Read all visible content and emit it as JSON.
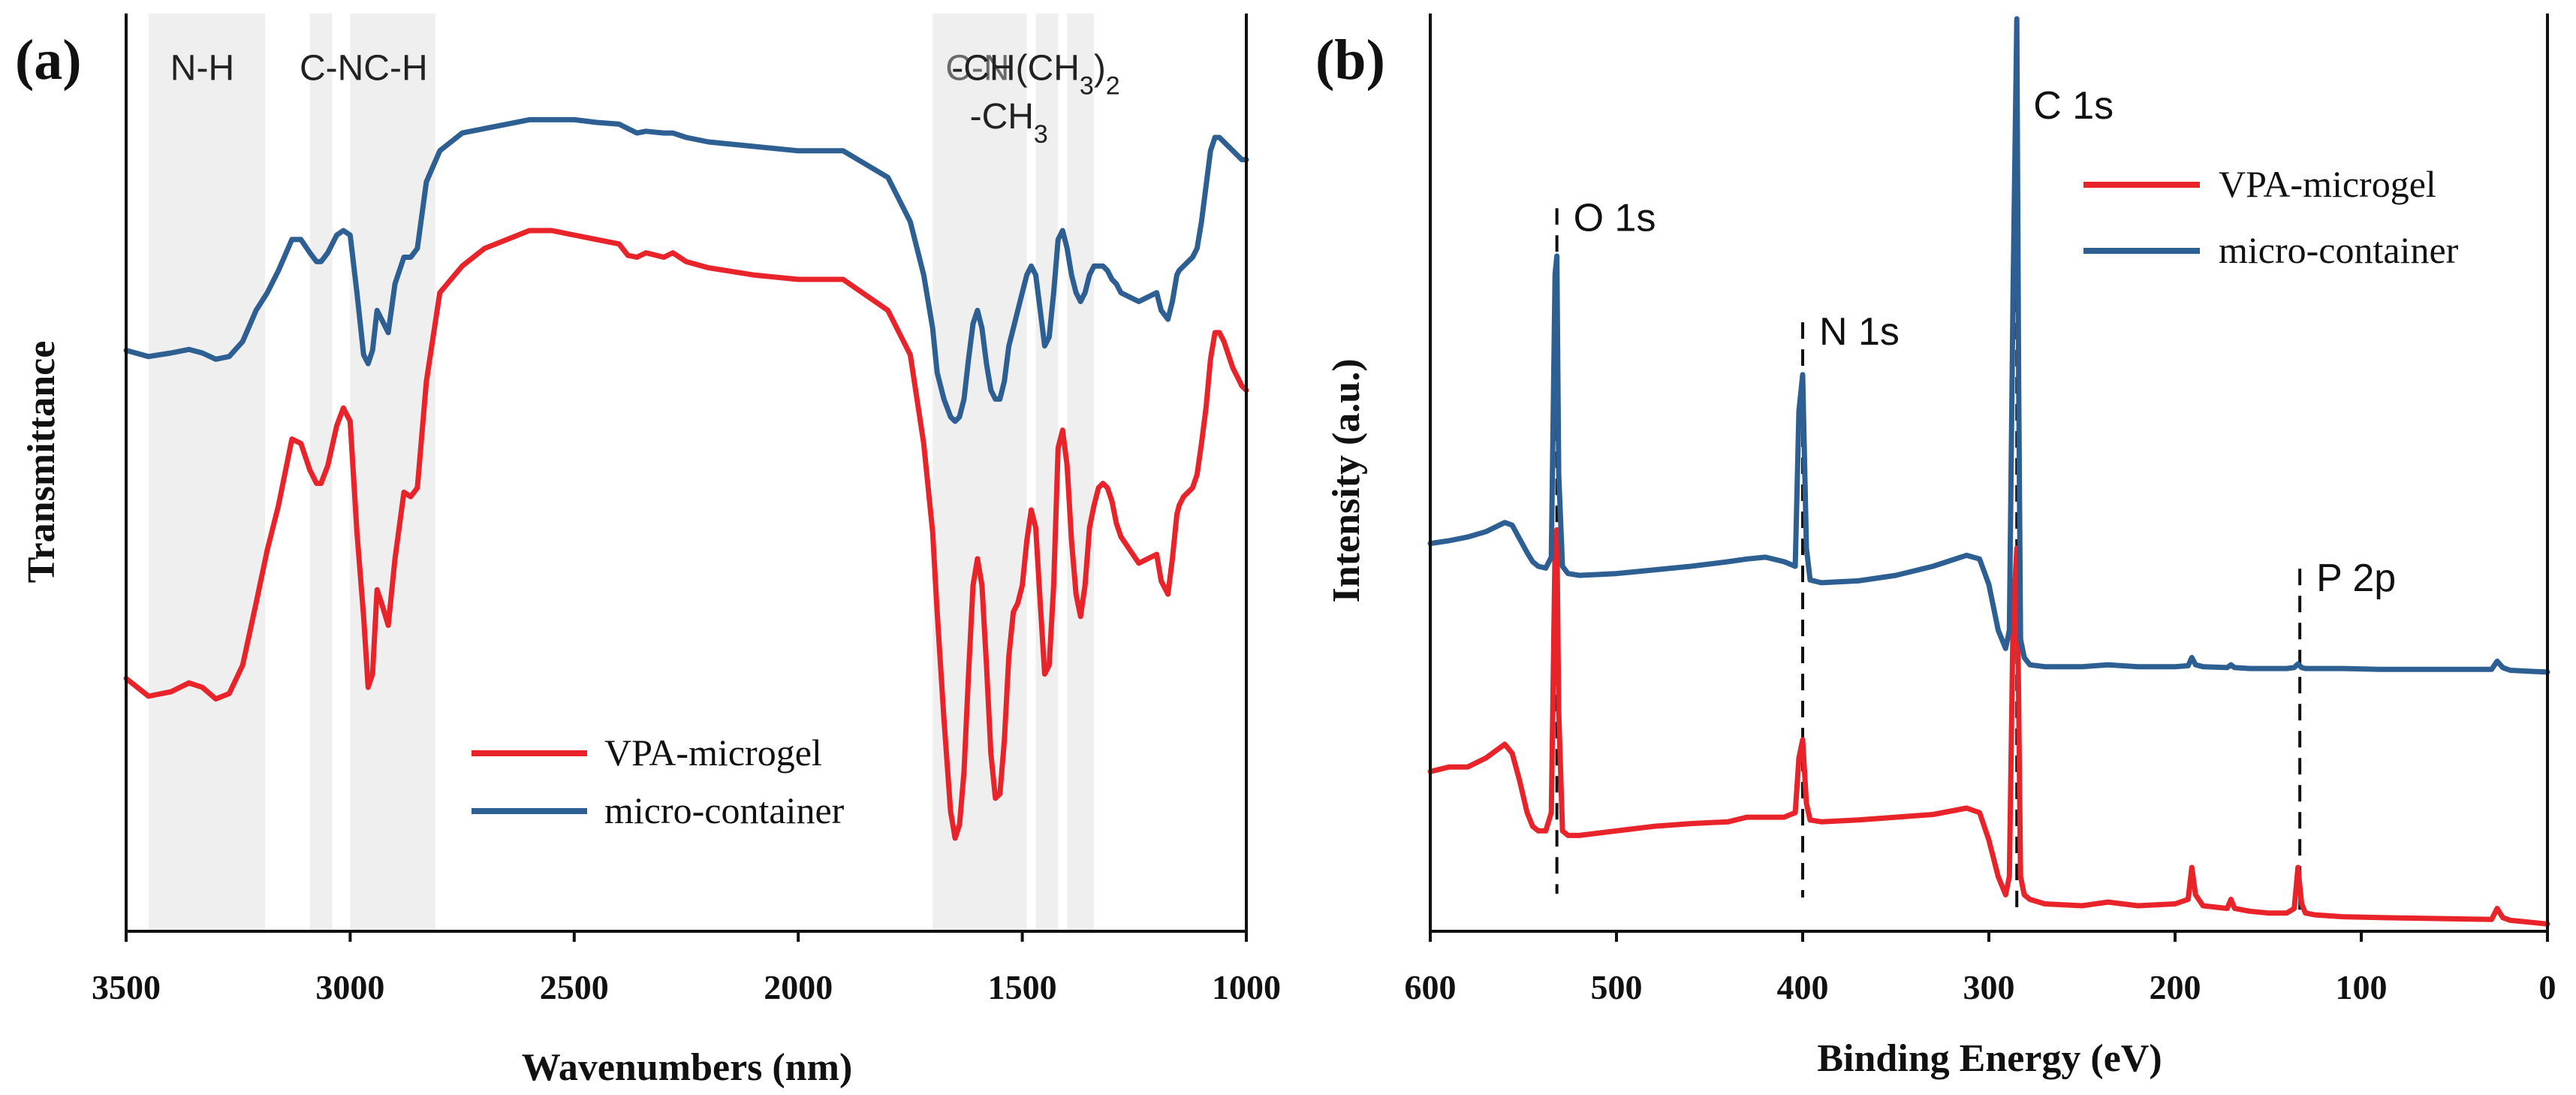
{
  "chart_data": [
    {
      "panel_label": "(a)",
      "type": "line",
      "xlabel": "Wavenumbers (nm)",
      "ylabel": "Transmittance",
      "xlim": [
        3500,
        1000
      ],
      "ylim": [
        0,
        1.05
      ],
      "xticks": [
        3500,
        3000,
        2500,
        2000,
        1500,
        1000
      ],
      "legend": {
        "position": "bottom-center"
      },
      "bands": [
        {
          "from": 3450,
          "to": 3190
        },
        {
          "from": 3090,
          "to": 3040
        },
        {
          "from": 3000,
          "to": 2810
        },
        {
          "from": 1700,
          "to": 1490
        },
        {
          "from": 1470,
          "to": 1420
        },
        {
          "from": 1400,
          "to": 1340
        }
      ],
      "annotations": [
        {
          "text": "N-H",
          "x": 3330,
          "y": 0.96,
          "color": "#222222"
        },
        {
          "text": "C-NC-H",
          "x": 2970,
          "y": 0.96,
          "color": "#222222"
        },
        {
          "text": "C-N",
          "x": 1600,
          "y": 0.96,
          "color": "#6a6a6a"
        },
        {
          "text": "-CH(CH",
          "sub": "3",
          "tail": ")",
          "sub2": "2",
          "x": 1470,
          "y": 0.96,
          "color": "#222222"
        },
        {
          "text": "-CH",
          "sub": "3",
          "x": 1530,
          "y": 0.905,
          "color": "#222222"
        }
      ],
      "series": [
        {
          "name": "VPA-microgel",
          "color": "#e8232a",
          "x": [
            3500,
            3450,
            3400,
            3360,
            3330,
            3300,
            3270,
            3240,
            3210,
            3185,
            3160,
            3130,
            3110,
            3090,
            3075,
            3065,
            3050,
            3030,
            3015,
            3000,
            2985,
            2970,
            2960,
            2950,
            2940,
            2930,
            2915,
            2900,
            2880,
            2865,
            2850,
            2830,
            2800,
            2750,
            2700,
            2650,
            2600,
            2550,
            2500,
            2450,
            2400,
            2380,
            2360,
            2340,
            2300,
            2280,
            2250,
            2200,
            2100,
            2000,
            1900,
            1800,
            1750,
            1720,
            1700,
            1690,
            1675,
            1660,
            1650,
            1640,
            1630,
            1620,
            1610,
            1600,
            1590,
            1580,
            1570,
            1560,
            1550,
            1540,
            1530,
            1520,
            1510,
            1500,
            1490,
            1480,
            1470,
            1460,
            1450,
            1440,
            1430,
            1420,
            1410,
            1400,
            1390,
            1380,
            1370,
            1360,
            1350,
            1340,
            1330,
            1320,
            1310,
            1300,
            1290,
            1280,
            1260,
            1240,
            1220,
            1200,
            1190,
            1175,
            1165,
            1155,
            1150,
            1140,
            1130,
            1120,
            1110,
            1100,
            1090,
            1080,
            1070,
            1060,
            1050,
            1040,
            1030,
            1020,
            1010,
            1000
          ],
          "y": [
            0.285,
            0.265,
            0.27,
            0.28,
            0.275,
            0.262,
            0.268,
            0.3,
            0.37,
            0.43,
            0.48,
            0.555,
            0.55,
            0.52,
            0.505,
            0.505,
            0.525,
            0.57,
            0.59,
            0.575,
            0.45,
            0.355,
            0.275,
            0.29,
            0.385,
            0.37,
            0.345,
            0.42,
            0.495,
            0.49,
            0.5,
            0.62,
            0.72,
            0.75,
            0.77,
            0.78,
            0.79,
            0.79,
            0.785,
            0.78,
            0.775,
            0.762,
            0.76,
            0.765,
            0.76,
            0.765,
            0.755,
            0.748,
            0.74,
            0.735,
            0.735,
            0.7,
            0.65,
            0.55,
            0.45,
            0.36,
            0.24,
            0.135,
            0.105,
            0.12,
            0.18,
            0.29,
            0.39,
            0.42,
            0.39,
            0.3,
            0.2,
            0.15,
            0.155,
            0.215,
            0.31,
            0.36,
            0.37,
            0.39,
            0.44,
            0.475,
            0.455,
            0.37,
            0.29,
            0.3,
            0.39,
            0.545,
            0.565,
            0.525,
            0.44,
            0.38,
            0.355,
            0.39,
            0.455,
            0.48,
            0.5,
            0.505,
            0.5,
            0.485,
            0.46,
            0.445,
            0.43,
            0.415,
            0.42,
            0.425,
            0.395,
            0.38,
            0.42,
            0.47,
            0.48,
            0.49,
            0.495,
            0.5,
            0.515,
            0.55,
            0.59,
            0.645,
            0.675,
            0.675,
            0.665,
            0.65,
            0.635,
            0.625,
            0.615,
            0.61
          ]
        },
        {
          "name": "micro-container",
          "color": "#2e5f93",
          "x": [
            3500,
            3450,
            3400,
            3360,
            3330,
            3300,
            3270,
            3240,
            3210,
            3185,
            3160,
            3130,
            3110,
            3090,
            3075,
            3065,
            3050,
            3030,
            3015,
            3000,
            2985,
            2970,
            2960,
            2950,
            2940,
            2930,
            2915,
            2900,
            2880,
            2865,
            2850,
            2830,
            2800,
            2750,
            2700,
            2650,
            2600,
            2550,
            2500,
            2450,
            2400,
            2380,
            2360,
            2340,
            2300,
            2280,
            2250,
            2200,
            2100,
            2000,
            1900,
            1800,
            1750,
            1720,
            1700,
            1690,
            1675,
            1660,
            1650,
            1640,
            1630,
            1620,
            1610,
            1600,
            1590,
            1580,
            1570,
            1560,
            1550,
            1540,
            1530,
            1520,
            1510,
            1500,
            1490,
            1480,
            1470,
            1460,
            1450,
            1440,
            1430,
            1420,
            1410,
            1400,
            1390,
            1380,
            1370,
            1360,
            1350,
            1340,
            1330,
            1320,
            1310,
            1300,
            1290,
            1280,
            1260,
            1240,
            1220,
            1200,
            1190,
            1175,
            1165,
            1155,
            1150,
            1140,
            1130,
            1120,
            1110,
            1100,
            1090,
            1080,
            1070,
            1060,
            1050,
            1040,
            1030,
            1020,
            1010,
            1000
          ],
          "y": [
            0.655,
            0.648,
            0.652,
            0.656,
            0.652,
            0.645,
            0.648,
            0.665,
            0.7,
            0.72,
            0.745,
            0.78,
            0.78,
            0.765,
            0.755,
            0.755,
            0.765,
            0.785,
            0.79,
            0.785,
            0.72,
            0.65,
            0.64,
            0.655,
            0.7,
            0.69,
            0.675,
            0.73,
            0.76,
            0.76,
            0.77,
            0.845,
            0.88,
            0.9,
            0.905,
            0.91,
            0.915,
            0.915,
            0.915,
            0.912,
            0.91,
            0.905,
            0.9,
            0.902,
            0.9,
            0.9,
            0.895,
            0.89,
            0.885,
            0.88,
            0.88,
            0.85,
            0.8,
            0.74,
            0.68,
            0.63,
            0.6,
            0.58,
            0.575,
            0.58,
            0.6,
            0.645,
            0.685,
            0.7,
            0.68,
            0.64,
            0.61,
            0.6,
            0.6,
            0.62,
            0.66,
            0.68,
            0.7,
            0.72,
            0.74,
            0.75,
            0.74,
            0.7,
            0.66,
            0.67,
            0.72,
            0.78,
            0.79,
            0.77,
            0.74,
            0.72,
            0.71,
            0.72,
            0.74,
            0.75,
            0.75,
            0.75,
            0.745,
            0.735,
            0.73,
            0.72,
            0.715,
            0.71,
            0.715,
            0.72,
            0.7,
            0.69,
            0.71,
            0.74,
            0.745,
            0.75,
            0.755,
            0.76,
            0.77,
            0.8,
            0.84,
            0.88,
            0.895,
            0.895,
            0.89,
            0.885,
            0.88,
            0.875,
            0.87,
            0.87
          ]
        }
      ]
    },
    {
      "panel_label": "(b)",
      "type": "line",
      "xlabel": "Binding Energy (eV)",
      "ylabel": "Intensity (a.u.)",
      "xlim": [
        600,
        0
      ],
      "ylim": [
        0,
        1.0
      ],
      "xticks": [
        600,
        500,
        400,
        300,
        200,
        100,
        0
      ],
      "legend": {
        "position": "top-right"
      },
      "reference_lines": [
        {
          "x": 532,
          "label": "O 1s",
          "label_y": 0.78
        },
        {
          "x": 400,
          "label": "N 1s",
          "label_y": 0.655
        },
        {
          "x": 285,
          "label": "C 1s",
          "label_y": 0.905
        },
        {
          "x": 133,
          "label": "P 2p",
          "label_y": 0.385
        }
      ],
      "series": [
        {
          "name": "VPA-microgel",
          "color": "#e8232a",
          "x": [
            600,
            590,
            580,
            570,
            560,
            556,
            552,
            548,
            545,
            542,
            538,
            535,
            533,
            532,
            531,
            529,
            526,
            520,
            500,
            480,
            460,
            440,
            430,
            420,
            410,
            404,
            402,
            400,
            398,
            396,
            390,
            370,
            350,
            330,
            312,
            305,
            300,
            295,
            291,
            289,
            287,
            285,
            284,
            283,
            281,
            278,
            270,
            250,
            236,
            220,
            200,
            193,
            191,
            189,
            185,
            172,
            170,
            168,
            160,
            150,
            140,
            136,
            134,
            132,
            130,
            125,
            110,
            90,
            60,
            30,
            27,
            24,
            20,
            10,
            0
          ],
          "y": [
            0.175,
            0.18,
            0.18,
            0.19,
            0.205,
            0.195,
            0.165,
            0.13,
            0.115,
            0.11,
            0.11,
            0.13,
            0.42,
            0.44,
            0.24,
            0.11,
            0.105,
            0.105,
            0.11,
            0.115,
            0.118,
            0.12,
            0.125,
            0.125,
            0.125,
            0.13,
            0.19,
            0.21,
            0.14,
            0.122,
            0.12,
            0.122,
            0.125,
            0.128,
            0.135,
            0.13,
            0.1,
            0.06,
            0.04,
            0.06,
            0.34,
            0.42,
            0.25,
            0.06,
            0.04,
            0.035,
            0.03,
            0.028,
            0.032,
            0.028,
            0.03,
            0.035,
            0.07,
            0.04,
            0.028,
            0.025,
            0.035,
            0.025,
            0.022,
            0.02,
            0.02,
            0.025,
            0.07,
            0.03,
            0.02,
            0.018,
            0.016,
            0.015,
            0.014,
            0.013,
            0.025,
            0.015,
            0.012,
            0.01,
            0.008
          ]
        },
        {
          "name": "micro-container",
          "color": "#2e5f93",
          "x": [
            600,
            590,
            580,
            570,
            560,
            556,
            552,
            548,
            545,
            542,
            538,
            535,
            533,
            532,
            531,
            529,
            526,
            520,
            500,
            480,
            460,
            440,
            430,
            420,
            410,
            404,
            402,
            400,
            398,
            396,
            390,
            370,
            350,
            330,
            312,
            305,
            300,
            295,
            291,
            289,
            287,
            285,
            284,
            283,
            281,
            278,
            270,
            250,
            236,
            220,
            200,
            193,
            191,
            189,
            185,
            172,
            170,
            168,
            160,
            150,
            140,
            136,
            134,
            132,
            130,
            125,
            110,
            90,
            60,
            30,
            27,
            24,
            20,
            10,
            0
          ],
          "y": [
            0.425,
            0.428,
            0.432,
            0.438,
            0.448,
            0.445,
            0.43,
            0.415,
            0.405,
            0.4,
            0.398,
            0.41,
            0.72,
            0.74,
            0.5,
            0.4,
            0.392,
            0.39,
            0.392,
            0.396,
            0.4,
            0.405,
            0.408,
            0.41,
            0.405,
            0.4,
            0.57,
            0.61,
            0.42,
            0.385,
            0.382,
            0.384,
            0.39,
            0.4,
            0.412,
            0.408,
            0.38,
            0.33,
            0.31,
            0.33,
            0.7,
            1.0,
            0.6,
            0.32,
            0.3,
            0.292,
            0.29,
            0.29,
            0.292,
            0.29,
            0.29,
            0.291,
            0.3,
            0.292,
            0.29,
            0.289,
            0.292,
            0.289,
            0.288,
            0.288,
            0.288,
            0.289,
            0.293,
            0.289,
            0.288,
            0.288,
            0.288,
            0.287,
            0.287,
            0.287,
            0.296,
            0.289,
            0.286,
            0.285,
            0.284
          ]
        }
      ]
    }
  ]
}
